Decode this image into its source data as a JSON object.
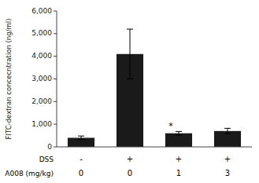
{
  "chart_data": {
    "type": "bar",
    "y_label": "FITC-dextran concecntration (ng/ml)",
    "category_rows": [
      {
        "name": "DSS",
        "labels": [
          "-",
          "+",
          "+",
          "+"
        ]
      },
      {
        "name": "A008 (mg/kg)",
        "labels": [
          "0",
          "0",
          "1",
          "3"
        ]
      }
    ],
    "values": [
      400,
      4100,
      600,
      700
    ],
    "errors": [
      80,
      1100,
      80,
      120
    ],
    "color": "#1a1a1a",
    "ylim": [
      0,
      6000
    ],
    "yticks": [
      0,
      {
        "value": 1000,
        "label": "1,000"
      },
      {
        "value": 2000,
        "label": "2,000"
      },
      {
        "value": 3000,
        "label": "3,000"
      },
      {
        "value": 4000,
        "label": "4,000"
      },
      {
        "value": 5000,
        "label": "5,000"
      },
      {
        "value": 6000,
        "label": "6,000"
      }
    ],
    "annotations": [
      {
        "text": "*",
        "index": 2
      }
    ],
    "grid": false
  }
}
